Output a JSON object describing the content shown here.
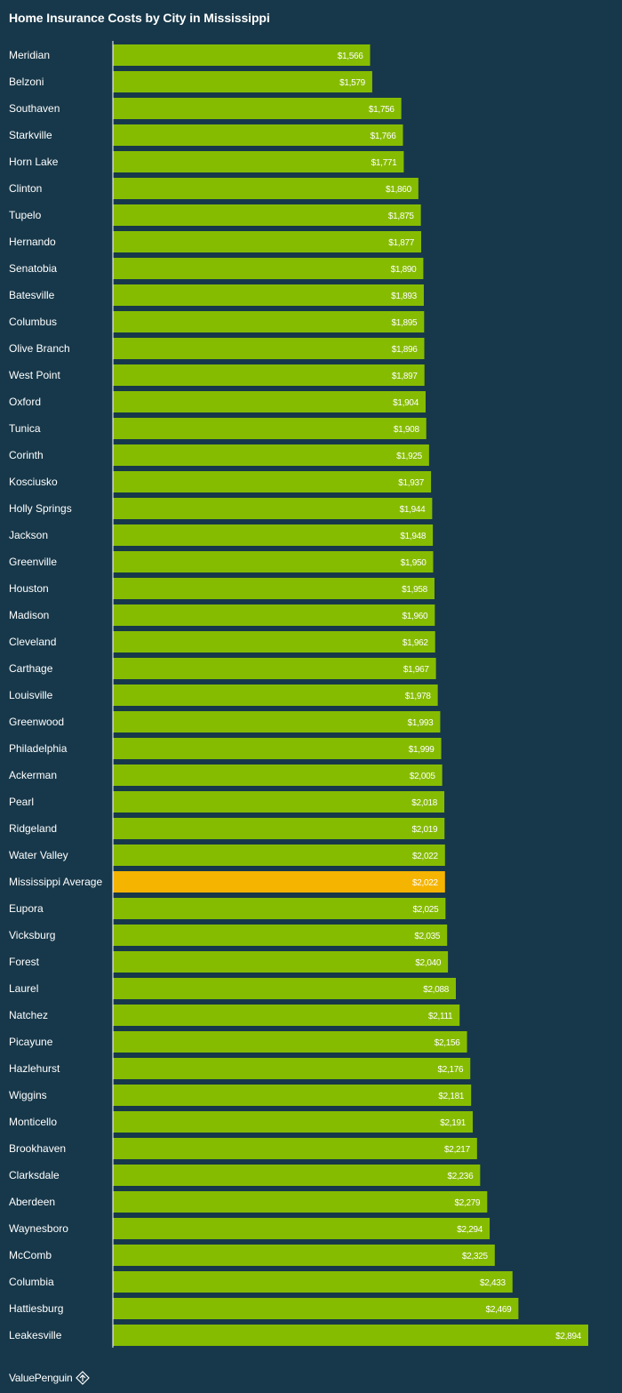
{
  "chart_data": {
    "type": "bar",
    "orientation": "horizontal",
    "title": "Home Insurance Costs by City in Mississippi",
    "xlabel": "",
    "ylabel": "",
    "xlim": [
      0,
      2894
    ],
    "grid": false,
    "legend": "none",
    "categories": [
      "Meridian",
      "Belzoni",
      "Southaven",
      "Starkville",
      "Horn Lake",
      "Clinton",
      "Tupelo",
      "Hernando",
      "Senatobia",
      "Batesville",
      "Columbus",
      "Olive Branch",
      "West Point",
      "Oxford",
      "Tunica",
      "Corinth",
      "Kosciusko",
      "Holly Springs",
      "Jackson",
      "Greenville",
      "Houston",
      "Madison",
      "Cleveland",
      "Carthage",
      "Louisville",
      "Greenwood",
      "Philadelphia",
      "Ackerman",
      "Pearl",
      "Ridgeland",
      "Water Valley",
      "Mississippi Average",
      "Eupora",
      "Vicksburg",
      "Forest",
      "Laurel",
      "Natchez",
      "Picayune",
      "Hazlehurst",
      "Wiggins",
      "Monticello",
      "Brookhaven",
      "Clarksdale",
      "Aberdeen",
      "Waynesboro",
      "McComb",
      "Columbia",
      "Hattiesburg",
      "Leakesville"
    ],
    "values": [
      1566,
      1579,
      1756,
      1766,
      1771,
      1860,
      1875,
      1877,
      1890,
      1893,
      1895,
      1896,
      1897,
      1904,
      1908,
      1925,
      1937,
      1944,
      1948,
      1950,
      1958,
      1960,
      1962,
      1967,
      1978,
      1993,
      1999,
      2005,
      2018,
      2019,
      2022,
      2022,
      2025,
      2035,
      2040,
      2088,
      2111,
      2156,
      2176,
      2181,
      2191,
      2217,
      2236,
      2279,
      2294,
      2325,
      2433,
      2469,
      2894
    ],
    "value_labels": [
      "$1,566",
      "$1,579",
      "$1,756",
      "$1,766",
      "$1,771",
      "$1,860",
      "$1,875",
      "$1,877",
      "$1,890",
      "$1,893",
      "$1,895",
      "$1,896",
      "$1,897",
      "$1,904",
      "$1,908",
      "$1,925",
      "$1,937",
      "$1,944",
      "$1,948",
      "$1,950",
      "$1,958",
      "$1,960",
      "$1,962",
      "$1,967",
      "$1,978",
      "$1,993",
      "$1,999",
      "$2,005",
      "$2,018",
      "$2,019",
      "$2,022",
      "$2,022",
      "$2,025",
      "$2,035",
      "$2,040",
      "$2,088",
      "$2,111",
      "$2,156",
      "$2,176",
      "$2,181",
      "$2,191",
      "$2,217",
      "$2,236",
      "$2,279",
      "$2,294",
      "$2,325",
      "$2,433",
      "$2,469",
      "$2,894"
    ],
    "highlight_category": "Mississippi Average",
    "colors": {
      "bar": "#86bc00",
      "highlight": "#f5b400",
      "background": "#17384a",
      "axis": "#ffffff",
      "text": "#ffffff"
    }
  },
  "footer": {
    "brand": "ValuePenguin",
    "brand_icon": "valuepenguin-logo-icon"
  }
}
